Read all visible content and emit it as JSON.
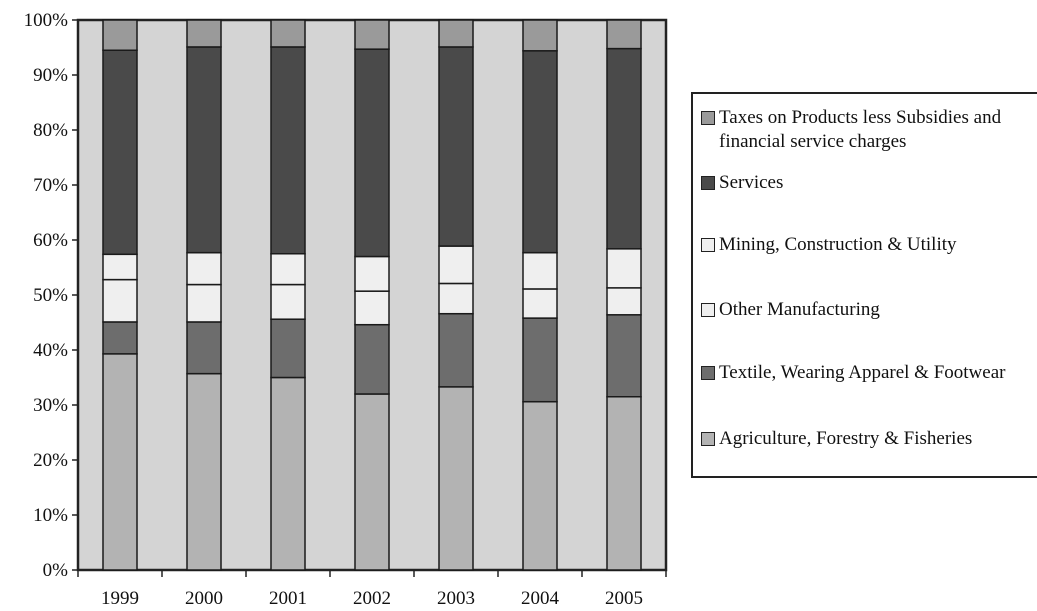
{
  "chart_data": {
    "type": "bar",
    "stacked": true,
    "categories": [
      "1999",
      "2000",
      "2001",
      "2002",
      "2003",
      "2004",
      "2005"
    ],
    "ylim": [
      0,
      100
    ],
    "y_ticks": [
      "0%",
      "10%",
      "20%",
      "30%",
      "40%",
      "50%",
      "60%",
      "70%",
      "80%",
      "90%",
      "100%"
    ],
    "grid": false,
    "legend_position": "right",
    "series": [
      {
        "name": "Agriculture, Forestry & Fisheries",
        "color": "#b3b3b3",
        "values": [
          39.3,
          35.7,
          35.0,
          32.0,
          33.3,
          30.6,
          31.5
        ]
      },
      {
        "name": "Textile, Wearing Apparel & Footwear",
        "color": "#6d6d6d",
        "values": [
          5.8,
          9.4,
          10.6,
          12.6,
          13.3,
          15.2,
          14.9
        ]
      },
      {
        "name": "Other Manufacturing",
        "color": "#efefef",
        "values": [
          7.7,
          6.8,
          6.3,
          6.1,
          5.5,
          5.3,
          4.9
        ]
      },
      {
        "name": "Mining, Construction & Utility",
        "color": "#efefef",
        "values": [
          4.6,
          5.8,
          5.6,
          6.3,
          6.8,
          6.6,
          7.1
        ]
      },
      {
        "name": "Services",
        "color": "#4a4a4a",
        "values": [
          37.1,
          37.4,
          37.6,
          37.7,
          36.2,
          36.7,
          36.4
        ]
      },
      {
        "name": "Taxes on Products less Subsidies and financial service charges",
        "color": "#9a9a9a",
        "values": [
          5.5,
          4.9,
          4.9,
          5.3,
          4.9,
          5.6,
          5.2
        ]
      }
    ]
  },
  "legend": {
    "items": [
      {
        "lines": [
          "Taxes on Products less Subsidies and",
          "financial service charges"
        ],
        "color": "#9a9a9a"
      },
      {
        "lines": [
          "Services"
        ],
        "color": "#4a4a4a"
      },
      {
        "lines": [
          "Mining, Construction & Utility"
        ],
        "color": "#efefef"
      },
      {
        "lines": [
          "Other Manufacturing"
        ],
        "color": "#efefef"
      },
      {
        "lines": [
          "Textile, Wearing Apparel & Footwear"
        ],
        "color": "#6d6d6d"
      },
      {
        "lines": [
          "Agriculture, Forestry & Fisheries"
        ],
        "color": "#b3b3b3"
      }
    ]
  },
  "colors": {
    "plot_background": "#d4d4d4",
    "frame": "#222222"
  }
}
